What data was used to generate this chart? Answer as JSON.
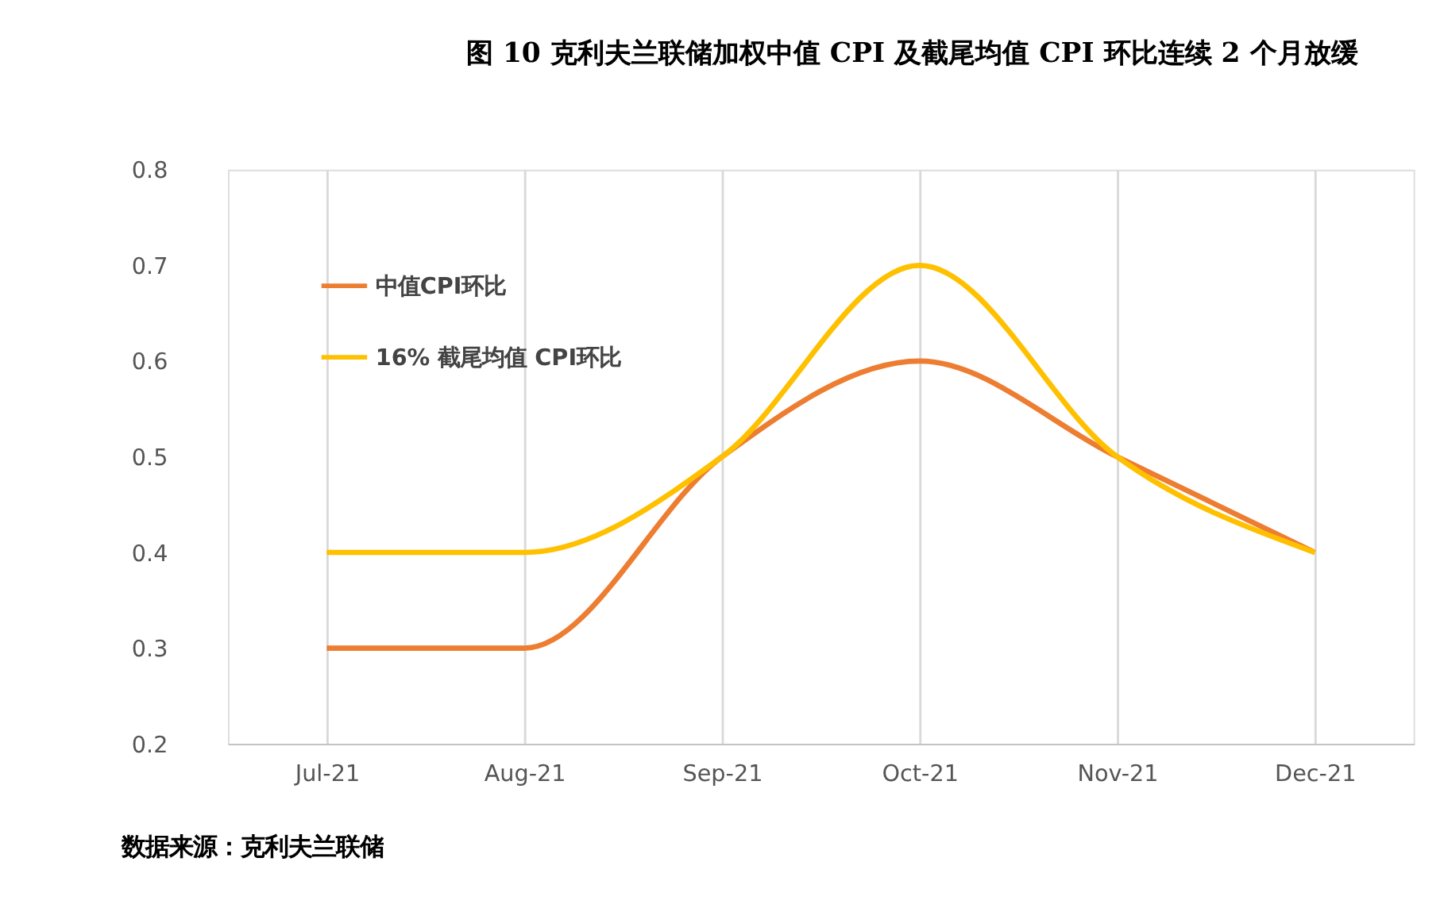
{
  "chart_data": {
    "type": "line",
    "title": "图 10 克利夫兰联储加权中值 CPI 及截尾均值 CPI 环比连续 2 个月放缓",
    "categories": [
      "Jul-21",
      "Aug-21",
      "Sep-21",
      "Oct-21",
      "Nov-21",
      "Dec-21"
    ],
    "series": [
      {
        "name": "中值CPI环比",
        "color": "#ed7d31",
        "values": [
          0.3,
          0.3,
          0.5,
          0.6,
          0.5,
          0.4
        ]
      },
      {
        "name": "16% 截尾均值 CPI环比",
        "color": "#ffc000",
        "values": [
          0.4,
          0.4,
          0.5,
          0.7,
          0.5,
          0.4
        ]
      }
    ],
    "ylim": [
      0.2,
      0.8
    ],
    "yticks": [
      0.2,
      0.3,
      0.4,
      0.5,
      0.6,
      0.7,
      0.8
    ],
    "grid": "x",
    "legend": "top left",
    "marker": "none",
    "line_style": "solid",
    "annotations": [
      "数据来源：克利夫兰联储"
    ]
  }
}
